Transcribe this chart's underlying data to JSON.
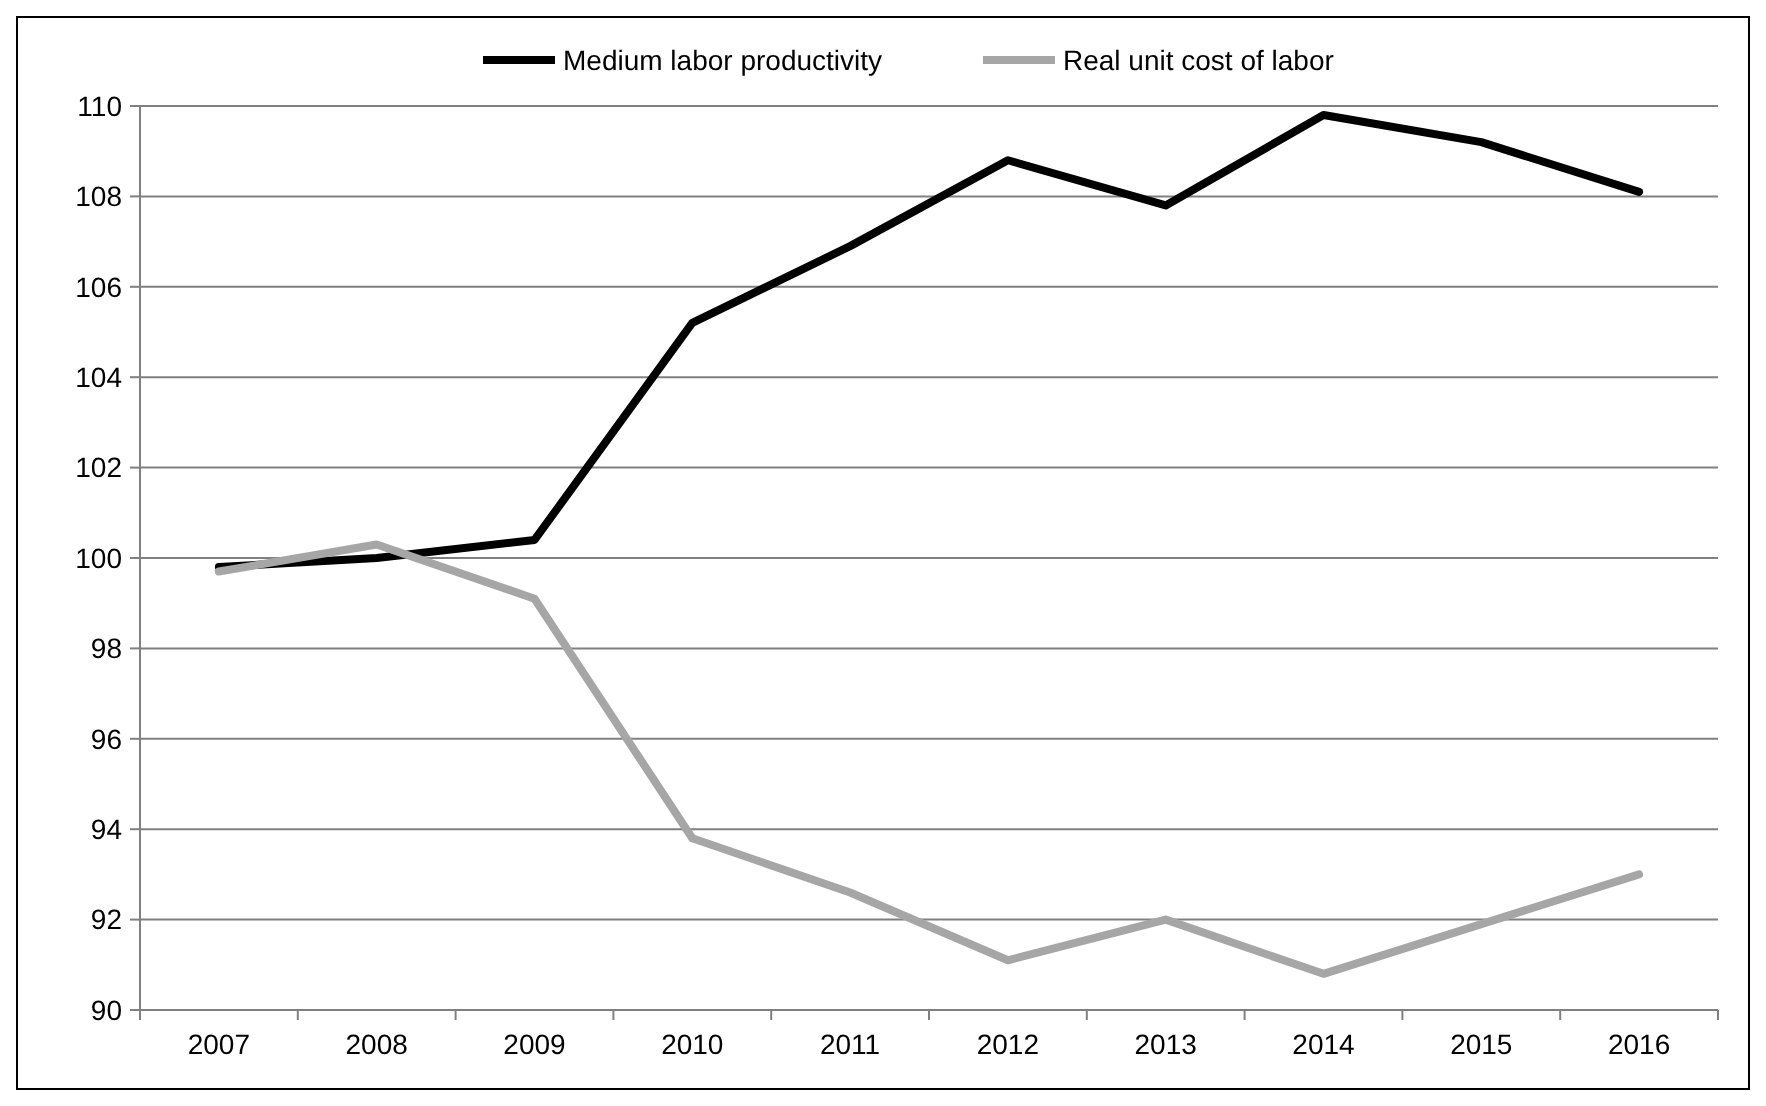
{
  "chart_data": {
    "type": "line",
    "categories": [
      "2007",
      "2008",
      "2009",
      "2010",
      "2011",
      "2012",
      "2013",
      "2014",
      "2015",
      "2016"
    ],
    "series": [
      {
        "name": "Medium labor productivity",
        "color": "#000000",
        "values": [
          99.8,
          100.0,
          100.4,
          105.2,
          106.9,
          108.8,
          107.8,
          109.8,
          109.2,
          108.1
        ]
      },
      {
        "name": "Real unit cost of labor",
        "color": "#a6a6a6",
        "values": [
          99.7,
          100.3,
          99.1,
          93.8,
          92.6,
          91.1,
          92.0,
          90.8,
          91.9,
          93.0
        ]
      }
    ],
    "ylim": [
      90,
      110
    ],
    "yticks": [
      90,
      92,
      94,
      96,
      98,
      100,
      102,
      104,
      106,
      108,
      110
    ],
    "grid": "y",
    "legend": "top",
    "marker": "none",
    "line_style": "solid"
  }
}
